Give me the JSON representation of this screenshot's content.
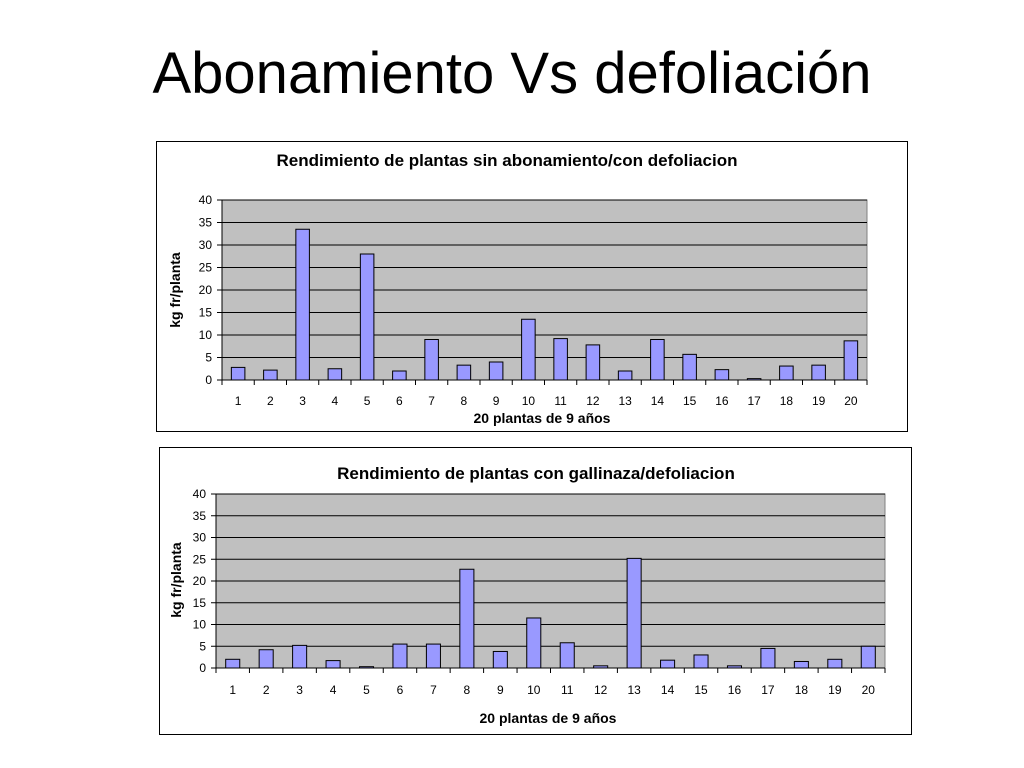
{
  "slide": {
    "title": "Abonamiento Vs  defoliación"
  },
  "chart_data": [
    {
      "type": "bar",
      "title": "Rendimiento de plantas sin abonamiento/con defoliacion",
      "xlabel": "20 plantas de 9 años",
      "ylabel": "kg fr/planta",
      "ylim": [
        0,
        40
      ],
      "yticks": [
        "0",
        "5",
        "10",
        "15",
        "20",
        "25",
        "30",
        "35",
        "40"
      ],
      "categories": [
        "1",
        "2",
        "3",
        "4",
        "5",
        "6",
        "7",
        "8",
        "9",
        "10",
        "11",
        "12",
        "13",
        "14",
        "15",
        "16",
        "17",
        "18",
        "19",
        "20"
      ],
      "values": [
        2.8,
        2.2,
        33.5,
        2.5,
        28,
        2,
        9,
        3.3,
        4,
        13.5,
        9.2,
        7.8,
        2,
        9,
        5.7,
        2.3,
        0.3,
        3.1,
        3.3,
        8.7
      ],
      "grid": true,
      "legend": "none",
      "bar_color": "#9999FF",
      "plot_bg": "#C0C0C0"
    },
    {
      "type": "bar",
      "title": "Rendimiento de plantas con gallinaza/defoliacion",
      "xlabel": "20 plantas de 9 años",
      "ylabel": "kg fr/planta",
      "ylim": [
        0,
        40
      ],
      "yticks": [
        "0",
        "5",
        "10",
        "15",
        "20",
        "25",
        "30",
        "35",
        "40"
      ],
      "categories": [
        "1",
        "2",
        "3",
        "4",
        "5",
        "6",
        "7",
        "8",
        "9",
        "10",
        "11",
        "12",
        "13",
        "14",
        "15",
        "16",
        "17",
        "18",
        "19",
        "20"
      ],
      "values": [
        2,
        4.2,
        5.2,
        1.7,
        0.3,
        5.5,
        5.5,
        22.7,
        3.8,
        11.5,
        5.8,
        0.5,
        25.2,
        1.8,
        3,
        0.5,
        4.5,
        1.5,
        2,
        5
      ],
      "grid": true,
      "legend": "none",
      "bar_color": "#9999FF",
      "plot_bg": "#C0C0C0"
    }
  ]
}
